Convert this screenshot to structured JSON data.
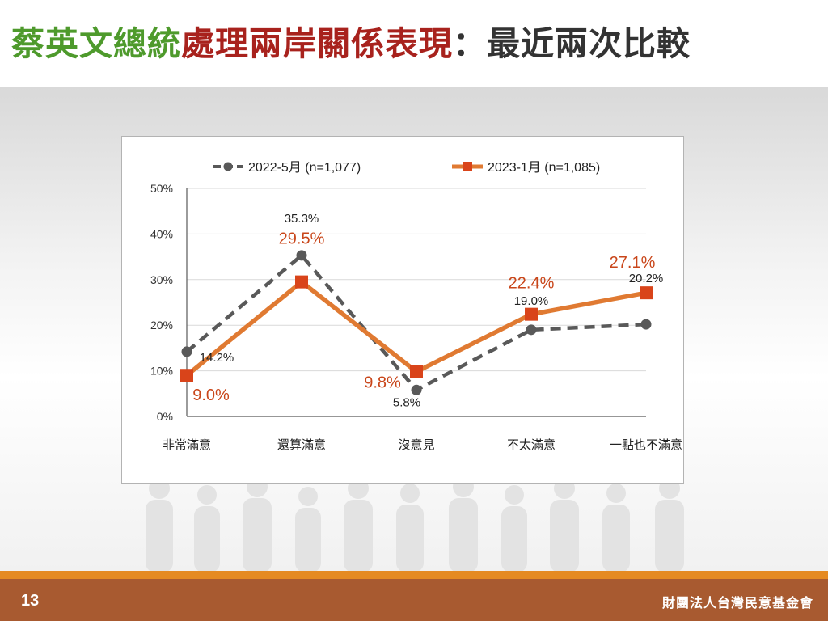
{
  "slide": {
    "title_part1": "蔡英文總統",
    "title_part2": "處理兩岸關係表現",
    "title_part3": "：最近兩次比較",
    "page_number": "13",
    "organization": "財團法人台灣民意基金會"
  },
  "chart_data": {
    "type": "line",
    "categories": [
      "非常滿意",
      "還算滿意",
      "沒意見",
      "不太滿意",
      "一點也不滿意"
    ],
    "ylim": [
      0,
      50
    ],
    "yticks": [
      "0%",
      "10%",
      "20%",
      "30%",
      "40%",
      "50%"
    ],
    "grid": true,
    "legend_position": "top",
    "series": [
      {
        "name": "2022-5月  (n=1,077)",
        "values": [
          14.2,
          35.3,
          5.8,
          19.0,
          20.2
        ],
        "labels": [
          "14.2%",
          "35.3%",
          "5.8%",
          "19.0%",
          "20.2%"
        ],
        "color": "#595959",
        "style": "dashed",
        "marker": "circle"
      },
      {
        "name": "2023-1月  (n=1,085)",
        "values": [
          9.0,
          29.5,
          9.8,
          22.4,
          27.1
        ],
        "labels": [
          "9.0%",
          "29.5%",
          "9.8%",
          "22.4%",
          "27.1%"
        ],
        "color": "#e07a32",
        "label_color": "#c9461a",
        "style": "solid",
        "marker": "square"
      }
    ]
  }
}
